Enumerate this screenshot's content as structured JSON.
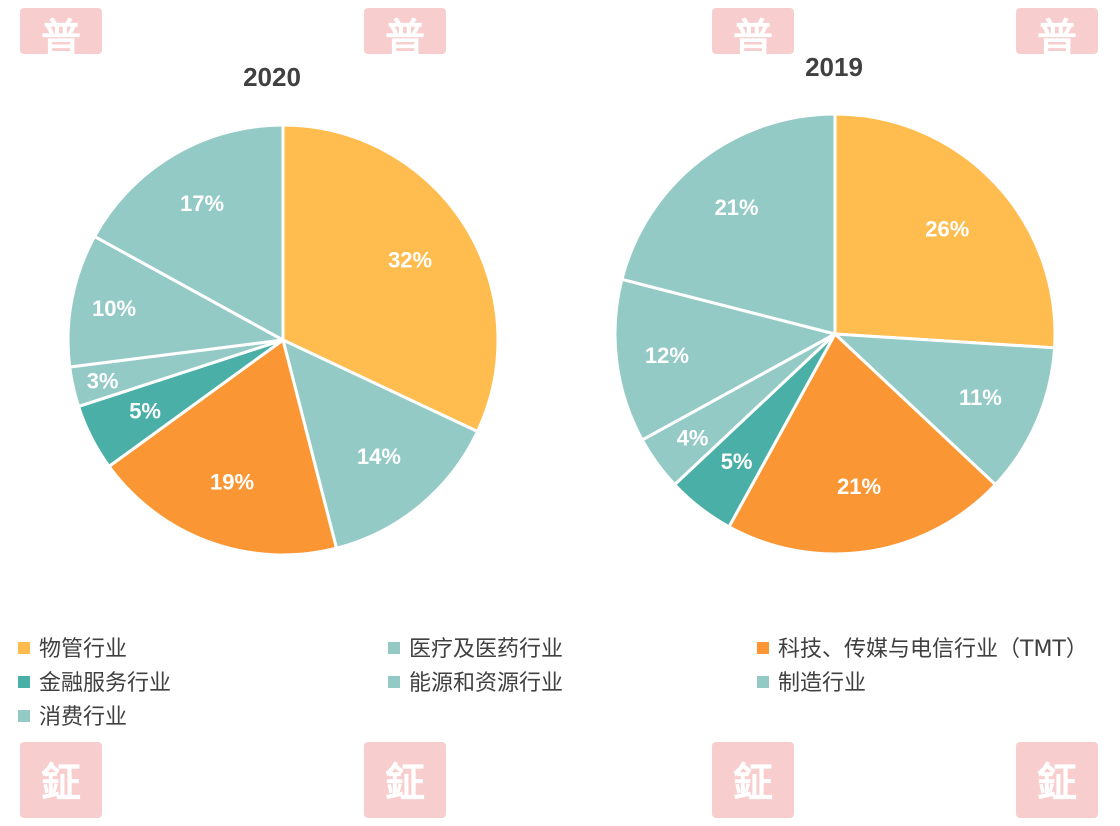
{
  "chart_data": [
    {
      "type": "pie",
      "title": "2020",
      "categories": [
        "物管行业",
        "医疗及医药行业",
        "科技、传媒与电信行业（TMT）",
        "金融服务行业",
        "能源和资源行业",
        "制造行业",
        "消费行业"
      ],
      "values": [
        32,
        14,
        19,
        5,
        3,
        10,
        17
      ],
      "labels": [
        "32%",
        "14%",
        "19%",
        "5%",
        "3%",
        "10%",
        "17%"
      ]
    },
    {
      "type": "pie",
      "title": "2019",
      "categories": [
        "物管行业",
        "医疗及医药行业",
        "科技、传媒与电信行业（TMT）",
        "金融服务行业",
        "能源和资源行业",
        "制造行业",
        "消费行业"
      ],
      "values": [
        26,
        11,
        21,
        5,
        4,
        12,
        21
      ],
      "labels": [
        "26%",
        "11%",
        "21%",
        "5%",
        "4%",
        "12%",
        "21%"
      ]
    }
  ],
  "legend": [
    {
      "label": "物管行业",
      "color": "#FFBC4F"
    },
    {
      "label": "医疗及医药行业",
      "color": "#93CAC6"
    },
    {
      "label": "科技、传媒与电信行业（TMT）",
      "color": "#FA9734"
    },
    {
      "label": "金融服务行业",
      "color": "#4AAFA6"
    },
    {
      "label": "能源和资源行业",
      "color": "#93CAC6"
    },
    {
      "label": "制造行业",
      "color": "#93CAC6"
    },
    {
      "label": "消费行业",
      "color": "#93CAC6"
    }
  ],
  "watermarks": {
    "top": "普",
    "bottom": "鉦",
    "color": "#F7C4C4"
  }
}
